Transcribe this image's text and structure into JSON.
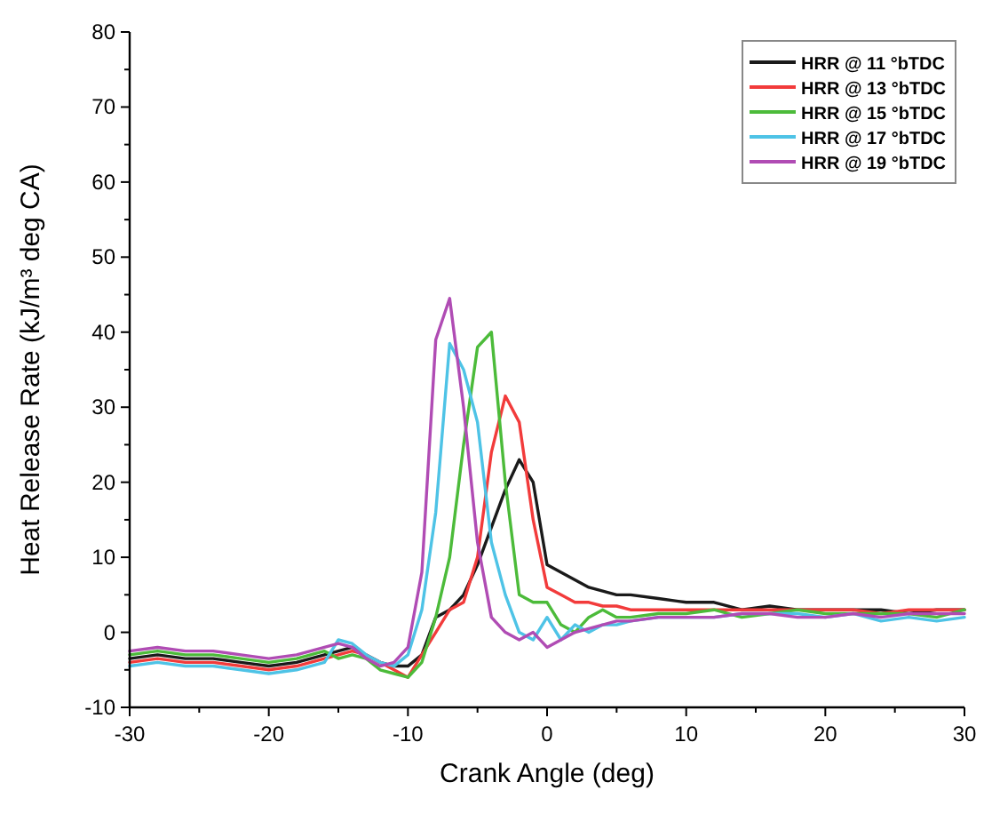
{
  "chart_data": {
    "type": "line",
    "xlabel": "Crank Angle (deg)",
    "ylabel": "Heat Release Rate (kJ/m³ deg CA)",
    "x": [
      -30,
      -28,
      -26,
      -24,
      -22,
      -20,
      -18,
      -16,
      -15,
      -14,
      -13,
      -12,
      -11,
      -10,
      -9,
      -8,
      -7,
      -6,
      -5,
      -4,
      -3,
      -2,
      -1,
      0,
      1,
      2,
      3,
      4,
      5,
      6,
      8,
      10,
      12,
      14,
      16,
      18,
      20,
      22,
      24,
      26,
      28,
      30
    ],
    "series": [
      {
        "name": "HRR @ 11 °bTDC",
        "color": "#1a1a1a",
        "values": [
          -3.5,
          -3,
          -3.5,
          -3.5,
          -4,
          -4.5,
          -4,
          -3,
          -2.5,
          -2,
          -3,
          -4,
          -4.5,
          -4.5,
          -3,
          2,
          3,
          5,
          9,
          14,
          19,
          23,
          20,
          9,
          8,
          7,
          6,
          5.5,
          5,
          5,
          4.5,
          4,
          4,
          3,
          3.5,
          3,
          3,
          3,
          3,
          2.5,
          3,
          3
        ]
      },
      {
        "name": "HRR @ 13 °bTDC",
        "color": "#f23b3b",
        "values": [
          -4,
          -3.5,
          -4,
          -4,
          -4.5,
          -5,
          -4.5,
          -3.5,
          -3,
          -2.5,
          -3,
          -4,
          -5,
          -6,
          -3,
          0,
          3,
          4,
          10,
          24,
          31.5,
          28,
          15,
          6,
          5,
          4,
          4,
          3.5,
          3.5,
          3,
          3,
          3,
          3,
          3,
          3,
          3,
          3,
          3,
          2.5,
          3,
          3,
          3
        ]
      },
      {
        "name": "HRR @ 15 °bTDC",
        "color": "#4cbb3a",
        "values": [
          -3,
          -2.5,
          -3,
          -3,
          -3.5,
          -4,
          -3.5,
          -2.5,
          -3.5,
          -3,
          -3.5,
          -5,
          -5.5,
          -6,
          -4,
          2,
          10,
          25,
          38,
          40,
          20,
          5,
          4,
          4,
          1,
          0,
          2,
          3,
          2,
          2,
          2.5,
          2.5,
          3,
          2,
          2.5,
          3,
          2.5,
          2.5,
          2.5,
          2.5,
          2,
          3
        ]
      },
      {
        "name": "HRR @ 17 °bTDC",
        "color": "#4ec3e6",
        "values": [
          -4.5,
          -4,
          -4.5,
          -4.5,
          -5,
          -5.5,
          -5,
          -4,
          -1,
          -1.5,
          -3,
          -4,
          -4.5,
          -3,
          3,
          16,
          38.5,
          35,
          28,
          12,
          5,
          0,
          -1,
          2,
          -1,
          1,
          0,
          1,
          1,
          1.5,
          2,
          2,
          2,
          2.5,
          2.5,
          2.5,
          2,
          2.5,
          1.5,
          2,
          1.5,
          2
        ]
      },
      {
        "name": "HRR @ 19 °bTDC",
        "color": "#b04cb4",
        "values": [
          -2.5,
          -2,
          -2.5,
          -2.5,
          -3,
          -3.5,
          -3,
          -2,
          -1.5,
          -2,
          -3.5,
          -4.5,
          -4,
          -2,
          8,
          39,
          44.5,
          30,
          12,
          2,
          0,
          -1,
          0,
          -2,
          -1,
          0,
          0.5,
          1,
          1.5,
          1.5,
          2,
          2,
          2,
          2.5,
          2.5,
          2,
          2,
          2.5,
          2,
          2.5,
          2.5,
          2.5
        ]
      }
    ],
    "xlim": [
      -30,
      30
    ],
    "xticks": [
      -30,
      {
        "value": -25,
        "label": null
      },
      -20,
      {
        "value": -15,
        "label": null
      },
      -10,
      {
        "value": -5,
        "label": null
      },
      0,
      {
        "value": 5,
        "label": null
      },
      10,
      {
        "value": 15,
        "label": null
      },
      20,
      {
        "value": 25,
        "label": null
      },
      30
    ],
    "ylim": [
      -10,
      80
    ],
    "yticks": [
      -10,
      {
        "value": -5,
        "label": null
      },
      0,
      {
        "value": 5,
        "label": null
      },
      10,
      {
        "value": 15,
        "label": null
      },
      20,
      {
        "value": 25,
        "label": null
      },
      30,
      {
        "value": 35,
        "label": null
      },
      40,
      {
        "value": 45,
        "label": null
      },
      50,
      {
        "value": 55,
        "label": null
      },
      60,
      {
        "value": 65,
        "label": null
      },
      70,
      {
        "value": 75,
        "label": null
      },
      80
    ],
    "grid": false,
    "legend": "top right",
    "marker": "none",
    "line_style": "solid"
  }
}
